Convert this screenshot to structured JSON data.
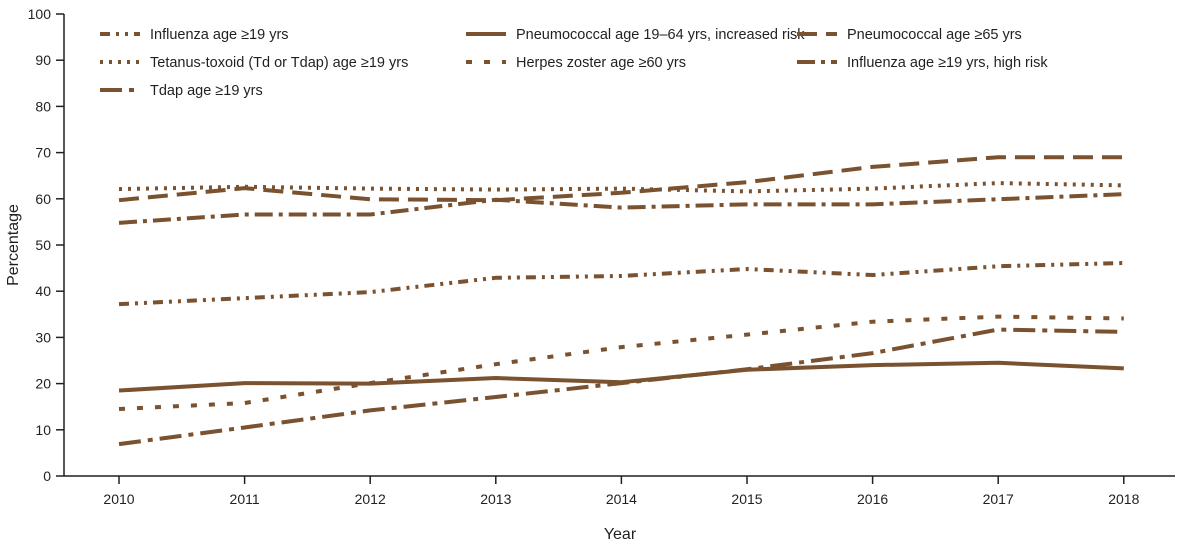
{
  "chart_data": {
    "type": "line",
    "title": "",
    "xlabel": "Year",
    "ylabel": "Percentage",
    "ylim": [
      0,
      100
    ],
    "yticks": [
      0,
      10,
      20,
      30,
      40,
      50,
      60,
      70,
      80,
      90,
      100
    ],
    "x": [
      "2010",
      "2011",
      "2012",
      "2013",
      "2014",
      "2015",
      "2016",
      "2017",
      "2018"
    ],
    "line_color": "#7a5230",
    "legend_position": "top",
    "series": [
      {
        "id": "flu",
        "name": "Influenza age ≥19 yrs",
        "style": "dash-dot-dot",
        "values": [
          37.2,
          38.5,
          39.8,
          42.9,
          43.3,
          44.8,
          43.5,
          45.4,
          46.1
        ]
      },
      {
        "id": "pneumo-risk",
        "name": "Pneumococcal age 19–64 yrs, increased risk",
        "style": "solid",
        "values": [
          18.5,
          20.1,
          20.0,
          21.2,
          20.3,
          23.0,
          24.0,
          24.5,
          23.3
        ]
      },
      {
        "id": "pneumo-65",
        "name": "Pneumococcal age ≥65 yrs",
        "style": "long-dash",
        "values": [
          59.7,
          62.3,
          59.9,
          59.7,
          61.3,
          63.6,
          66.9,
          69.0,
          69.0
        ]
      },
      {
        "id": "td",
        "name": "Tetanus-toxoid (Td or Tdap) age ≥19 yrs",
        "style": "dotted",
        "values": [
          62.1,
          62.6,
          62.2,
          62.0,
          62.2,
          61.6,
          62.2,
          63.4,
          62.9
        ]
      },
      {
        "id": "zoster",
        "name": "Herpes zoster age ≥60 yrs",
        "style": "short-dash",
        "values": [
          14.5,
          15.8,
          20.1,
          24.2,
          27.9,
          30.6,
          33.4,
          34.5,
          34.1
        ]
      },
      {
        "id": "flu-high",
        "name": "Influenza age ≥19 yrs, high risk",
        "style": "dash-dot",
        "values": [
          54.8,
          56.6,
          56.6,
          59.8,
          58.1,
          58.8,
          58.8,
          59.9,
          61.0
        ]
      },
      {
        "id": "tdap",
        "name": "Tdap age ≥19 yrs",
        "style": "long-dash-dot",
        "values": [
          6.9,
          10.5,
          14.2,
          17.1,
          20.1,
          23.1,
          26.6,
          31.7,
          31.2
        ]
      }
    ]
  }
}
